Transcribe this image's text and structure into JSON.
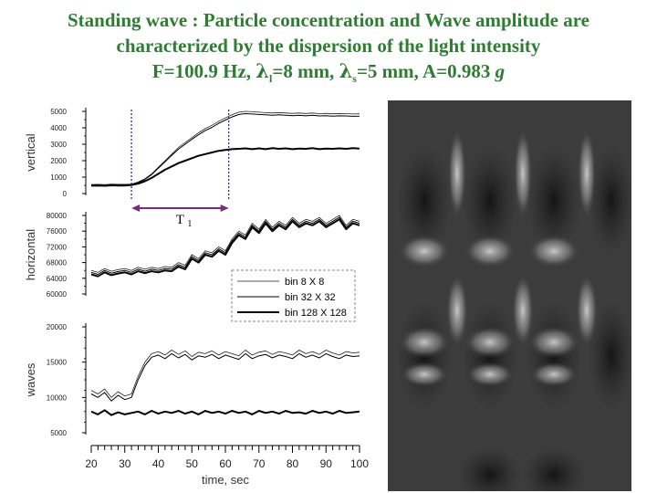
{
  "title": {
    "line1": "Standing wave : Particle concentration and Wave amplitude are",
    "line2": "characterized by the dispersion of the light intensity",
    "f_label": "F=100.9 Hz, ",
    "lambda_sym": "λ",
    "l_sub": "l",
    "l_val": "=8 mm, ",
    "s_sub": "s",
    "s_val": "=5 mm, A=0.983 ",
    "g_unit": "g"
  },
  "colors": {
    "title": "#2e7d32",
    "marker": "#1a1aa0",
    "arrow": "#7a2e7a",
    "photo_bg": "#3a3a3a"
  },
  "chart_data": {
    "type": "line",
    "xlabel": "time, sec",
    "x_ticks": [
      "20",
      "30",
      "40",
      "50",
      "60",
      "70",
      "80",
      "90",
      "100"
    ],
    "xlim": [
      20,
      100
    ],
    "marker_lines_x": [
      32,
      61
    ],
    "annotation": "T",
    "annotation_sub": "1",
    "legend": [
      "bin 8 X 8",
      "bin 32 X 32",
      "bin 128 X 128"
    ],
    "legend_position": "inside bottom-right of horizontal panel",
    "x": [
      20,
      22,
      24,
      26,
      28,
      30,
      32,
      34,
      36,
      38,
      40,
      42,
      44,
      46,
      48,
      50,
      52,
      54,
      56,
      58,
      60,
      62,
      64,
      66,
      68,
      70,
      72,
      74,
      76,
      78,
      80,
      82,
      84,
      86,
      88,
      90,
      92,
      94,
      96,
      98,
      100
    ],
    "panels": [
      {
        "ylabel": "vertical",
        "yticks": [
          "5000",
          "4000",
          "3000",
          "2000",
          "1000",
          "0"
        ],
        "ylim": [
          0,
          5000
        ],
        "series": [
          {
            "name": "bin 8 X 8",
            "values": [
              550,
              560,
              540,
              570,
              560,
              560,
              580,
              700,
              900,
              1200,
              1600,
              2000,
              2400,
              2800,
              3100,
              3400,
              3700,
              3950,
              4150,
              4400,
              4600,
              4800,
              4950,
              5000,
              4980,
              4950,
              4920,
              4900,
              4930,
              4900,
              4880,
              4900,
              4870,
              4900,
              4860,
              4880,
              4850,
              4870,
              4860,
              4840,
              4850
            ]
          },
          {
            "name": "bin 32 X 32",
            "values": [
              520,
              530,
              515,
              540,
              530,
              530,
              550,
              660,
              860,
              1150,
              1540,
              1930,
              2320,
              2700,
              3000,
              3300,
              3580,
              3830,
              4030,
              4270,
              4470,
              4660,
              4810,
              4860,
              4840,
              4810,
              4790,
              4760,
              4790,
              4760,
              4740,
              4760,
              4730,
              4760,
              4720,
              4740,
              4710,
              4730,
              4720,
              4700,
              4710
            ]
          },
          {
            "name": "bin 128 X 128",
            "values": [
              480,
              490,
              470,
              500,
              490,
              490,
              520,
              600,
              750,
              950,
              1200,
              1450,
              1650,
              1850,
              2000,
              2150,
              2300,
              2400,
              2500,
              2600,
              2650,
              2700,
              2720,
              2750,
              2700,
              2750,
              2700,
              2760,
              2720,
              2750,
              2700,
              2740,
              2720,
              2760,
              2700,
              2740,
              2720,
              2750,
              2720,
              2760,
              2740
            ]
          }
        ]
      },
      {
        "ylabel": "horizontal",
        "yticks": [
          "80000",
          "76000",
          "72000",
          "68000",
          "64000",
          "60000"
        ],
        "ylim": [
          60000,
          80000
        ],
        "series": [
          {
            "name": "bin 8 X 8",
            "values": [
              66000,
              65500,
              66500,
              65800,
              66200,
              66500,
              66000,
              66800,
              66300,
              66800,
              66500,
              67000,
              66800,
              68000,
              67300,
              70000,
              69000,
              71000,
              70500,
              72000,
              71000,
              74000,
              76000,
              75000,
              78000,
              76500,
              79000,
              77000,
              78500,
              77500,
              79500,
              78000,
              79000,
              78500,
              79500,
              78000,
              79000,
              80000,
              77500,
              79000,
              78500
            ]
          },
          {
            "name": "bin 32 X 32",
            "values": [
              65500,
              65000,
              66000,
              65300,
              65700,
              66000,
              65500,
              66300,
              65800,
              66300,
              66000,
              66500,
              66300,
              67500,
              66800,
              69500,
              68500,
              70500,
              70000,
              71500,
              70500,
              73500,
              75500,
              74500,
              77500,
              76000,
              78500,
              76500,
              78000,
              77000,
              79000,
              77500,
              78500,
              78000,
              79000,
              77500,
              78500,
              79500,
              77000,
              78500,
              78000
            ]
          },
          {
            "name": "bin 128 X 128",
            "values": [
              65000,
              64500,
              65500,
              64800,
              65200,
              65500,
              65000,
              65800,
              65300,
              65800,
              65500,
              66000,
              65800,
              67000,
              66300,
              69000,
              68000,
              70000,
              69500,
              71000,
              70000,
              73000,
              75000,
              74000,
              77000,
              75500,
              78000,
              76000,
              77500,
              76500,
              78500,
              77000,
              78000,
              77500,
              78500,
              77000,
              78000,
              79000,
              76500,
              78000,
              77500
            ]
          }
        ]
      },
      {
        "ylabel": "waves",
        "yticks": [
          "20000",
          "15000",
          "10000",
          "5000"
        ],
        "ylim": [
          5000,
          20000
        ],
        "series": [
          {
            "name": "bin 8 X 8",
            "values": [
              11000,
              10500,
              11200,
              10000,
              10800,
              10200,
              10500,
              13000,
              15000,
              16200,
              16500,
              16000,
              16700,
              16100,
              16600,
              15800,
              16400,
              16200,
              16600,
              16000,
              16500,
              16200,
              15900,
              16700,
              16000,
              16400,
              16600,
              16100,
              16500,
              16300,
              16000,
              16700,
              16200,
              16500,
              16100,
              16700,
              16300,
              16000,
              16500,
              16300,
              16400
            ]
          },
          {
            "name": "bin 32 X 32",
            "values": [
              10500,
              10000,
              10700,
              9500,
              10300,
              9700,
              10000,
              12500,
              14500,
              15700,
              16000,
              15500,
              16200,
              15600,
              16100,
              15300,
              15900,
              15700,
              16100,
              15500,
              16000,
              15700,
              15400,
              16200,
              15500,
              15900,
              16100,
              15600,
              16000,
              15800,
              15500,
              16200,
              15700,
              16000,
              15600,
              16200,
              15800,
              15500,
              16000,
              15800,
              15900
            ]
          },
          {
            "name": "bin 128 X 128",
            "values": [
              8000,
              7600,
              8200,
              7500,
              7900,
              7600,
              7800,
              8000,
              7600,
              8100,
              7700,
              8000,
              7800,
              8100,
              7700,
              8000,
              7600,
              8100,
              7800,
              8000,
              7700,
              8100,
              7800,
              8000,
              7600,
              8100,
              7800,
              8000,
              7700,
              8100,
              7800,
              7900,
              7700,
              8100,
              7800,
              8000,
              7700,
              8100,
              7800,
              7900,
              8000
            ]
          }
        ]
      }
    ]
  }
}
